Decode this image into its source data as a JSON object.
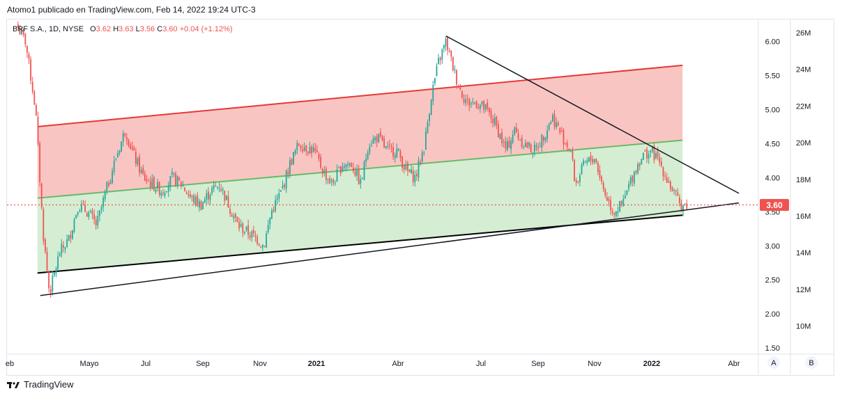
{
  "header": {
    "publisher_line": "Atomo1 publicado en TradingView.com, Feb 14, 2022 19:24 UTC-3"
  },
  "legend": {
    "symbol": "BRF S.A., 1D, NYSE",
    "o_label": "O",
    "o_value": "3.62",
    "h_label": "H",
    "h_value": "3.63",
    "l_label": "L",
    "l_value": "3.56",
    "c_label": "C",
    "c_value": "3.60",
    "change": "+0.04 (+1.12%)"
  },
  "footer": {
    "brand": "TradingView"
  },
  "buttons": {
    "a": "A",
    "b": "B"
  },
  "colors": {
    "up": "#26a69a",
    "down": "#ef5350",
    "upper_fill": "#f7b2ad",
    "lower_fill": "#b9e1b6",
    "upper_line": "#e53935",
    "mid_line": "#66bb6a",
    "trend": "#131722",
    "price_badge": "#ef5350"
  },
  "chart_data": {
    "type": "candlestick",
    "symbol": "BRF S.A.",
    "interval": "1D",
    "exchange": "NYSE",
    "current_price": 3.6,
    "current_price_label": "3.60",
    "price_axis": {
      "ticks": [
        "6.00",
        "5.50",
        "5.00",
        "4.50",
        "4.00",
        "3.50",
        "3.00",
        "2.50",
        "2.00",
        "1.50"
      ],
      "range": [
        1.45,
        6.2
      ]
    },
    "volume_axis": {
      "ticks": [
        "26M",
        "24M",
        "22M",
        "20M",
        "18M",
        "16M",
        "14M",
        "12M",
        "10M"
      ]
    },
    "x_axis": {
      "labels": [
        {
          "text": "eb",
          "bold": false
        },
        {
          "text": "Mayo",
          "bold": false
        },
        {
          "text": "Jul",
          "bold": false
        },
        {
          "text": "Sep",
          "bold": false
        },
        {
          "text": "Nov",
          "bold": false
        },
        {
          "text": "2021",
          "bold": true
        },
        {
          "text": "Abr",
          "bold": false
        },
        {
          "text": "Jul",
          "bold": false
        },
        {
          "text": "Sep",
          "bold": false
        },
        {
          "text": "Nov",
          "bold": false
        },
        {
          "text": "2022",
          "bold": true
        },
        {
          "text": "Abr",
          "bold": false
        }
      ]
    },
    "price_path": [
      [
        "2020-02-20",
        6.2
      ],
      [
        "2020-02-28",
        6.0
      ],
      [
        "2020-03-10",
        5.0
      ],
      [
        "2020-03-18",
        3.2
      ],
      [
        "2020-03-25",
        2.3
      ],
      [
        "2020-04-05",
        2.9
      ],
      [
        "2020-04-15",
        3.1
      ],
      [
        "2020-04-25",
        3.6
      ],
      [
        "2020-05-05",
        3.5
      ],
      [
        "2020-05-15",
        3.3
      ],
      [
        "2020-05-25",
        3.8
      ],
      [
        "2020-06-05",
        4.3
      ],
      [
        "2020-06-15",
        4.7
      ],
      [
        "2020-06-25",
        4.3
      ],
      [
        "2020-07-05",
        4.0
      ],
      [
        "2020-07-15",
        3.9
      ],
      [
        "2020-07-25",
        3.8
      ],
      [
        "2020-08-05",
        4.0
      ],
      [
        "2020-08-15",
        3.9
      ],
      [
        "2020-08-25",
        3.7
      ],
      [
        "2020-09-05",
        3.6
      ],
      [
        "2020-09-15",
        3.8
      ],
      [
        "2020-09-25",
        3.9
      ],
      [
        "2020-10-05",
        3.6
      ],
      [
        "2020-10-15",
        3.3
      ],
      [
        "2020-10-25",
        3.2
      ],
      [
        "2020-11-05",
        3.1
      ],
      [
        "2020-11-12",
        3.0
      ],
      [
        "2020-11-20",
        3.5
      ],
      [
        "2020-12-01",
        3.8
      ],
      [
        "2020-12-10",
        4.2
      ],
      [
        "2020-12-20",
        4.5
      ],
      [
        "2021-01-05",
        4.4
      ],
      [
        "2021-01-15",
        4.1
      ],
      [
        "2021-01-25",
        3.9
      ],
      [
        "2021-02-05",
        4.2
      ],
      [
        "2021-02-15",
        4.2
      ],
      [
        "2021-02-25",
        3.9
      ],
      [
        "2021-03-05",
        4.5
      ],
      [
        "2021-03-15",
        4.6
      ],
      [
        "2021-03-25",
        4.4
      ],
      [
        "2021-04-05",
        4.4
      ],
      [
        "2021-04-15",
        4.1
      ],
      [
        "2021-04-25",
        4.0
      ],
      [
        "2021-05-05",
        4.5
      ],
      [
        "2021-05-12",
        5.2
      ],
      [
        "2021-05-20",
        5.7
      ],
      [
        "2021-05-28",
        6.0
      ],
      [
        "2021-06-05",
        5.6
      ],
      [
        "2021-06-12",
        5.3
      ],
      [
        "2021-06-20",
        5.1
      ],
      [
        "2021-07-01",
        5.1
      ],
      [
        "2021-07-10",
        5.0
      ],
      [
        "2021-07-20",
        4.8
      ],
      [
        "2021-08-01",
        4.4
      ],
      [
        "2021-08-10",
        4.7
      ],
      [
        "2021-08-20",
        4.5
      ],
      [
        "2021-09-01",
        4.4
      ],
      [
        "2021-09-10",
        4.6
      ],
      [
        "2021-09-20",
        4.9
      ],
      [
        "2021-10-01",
        4.6
      ],
      [
        "2021-10-10",
        4.4
      ],
      [
        "2021-10-15",
        3.9
      ],
      [
        "2021-10-25",
        4.2
      ],
      [
        "2021-11-05",
        4.3
      ],
      [
        "2021-11-15",
        3.8
      ],
      [
        "2021-11-25",
        3.5
      ],
      [
        "2021-12-05",
        3.6
      ],
      [
        "2021-12-15",
        4.0
      ],
      [
        "2021-12-25",
        4.3
      ],
      [
        "2022-01-05",
        4.4
      ],
      [
        "2022-01-15",
        4.2
      ],
      [
        "2022-01-25",
        3.9
      ],
      [
        "2022-02-05",
        3.6
      ],
      [
        "2022-02-14",
        3.6
      ]
    ],
    "drawings": {
      "regression_channel": {
        "start": "2020-03-12",
        "end": "2022-02-08",
        "upper": [
          4.75,
          5.65
        ],
        "middle": [
          3.7,
          4.55
        ],
        "lower": [
          2.6,
          3.45
        ]
      },
      "trend_lines": [
        {
          "name": "support",
          "points": [
            [
              "2020-03-15",
              2.27
            ],
            [
              "2022-04-10",
              3.63
            ]
          ]
        },
        {
          "name": "resistance",
          "points": [
            [
              "2021-05-28",
              6.08
            ],
            [
              "2022-04-10",
              3.77
            ]
          ]
        }
      ],
      "price_line": 3.6
    }
  }
}
